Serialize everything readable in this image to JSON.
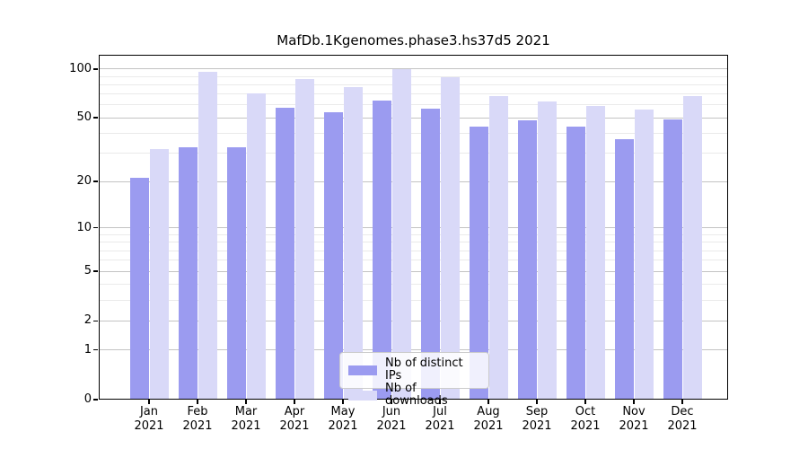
{
  "chart_data": {
    "type": "bar",
    "title": "MafDb.1Kgenomes.phase3.hs37d5 2021",
    "year": "2021",
    "categories": [
      "Jan",
      "Feb",
      "Mar",
      "Apr",
      "May",
      "Jun",
      "Jul",
      "Aug",
      "Sep",
      "Oct",
      "Nov",
      "Dec"
    ],
    "series": [
      {
        "name": "Nb of distinct IPs",
        "color": "#9b9bf0",
        "values": [
          21,
          33,
          33,
          58,
          54,
          64,
          57,
          44,
          48,
          44,
          37,
          49
        ]
      },
      {
        "name": "Nb of downloads",
        "color": "#d9d9f8",
        "values": [
          32,
          96,
          71,
          87,
          77,
          100,
          89,
          68,
          63,
          59,
          56,
          68
        ]
      }
    ],
    "xlabel": "",
    "ylabel": "",
    "yscale": "log1p",
    "ylim": [
      0,
      122
    ],
    "yticks": [
      0,
      1,
      2,
      5,
      10,
      20,
      50,
      100
    ],
    "minor_yticks": [
      3,
      4,
      6,
      7,
      8,
      9,
      30,
      40,
      60,
      70,
      80,
      90
    ],
    "grid": true,
    "legend_position": "bottom-center",
    "colors": {
      "major_grid": "#c3c3c3",
      "minor_grid": "#eaeaea",
      "axis": "#000000",
      "background": "#ffffff"
    }
  }
}
